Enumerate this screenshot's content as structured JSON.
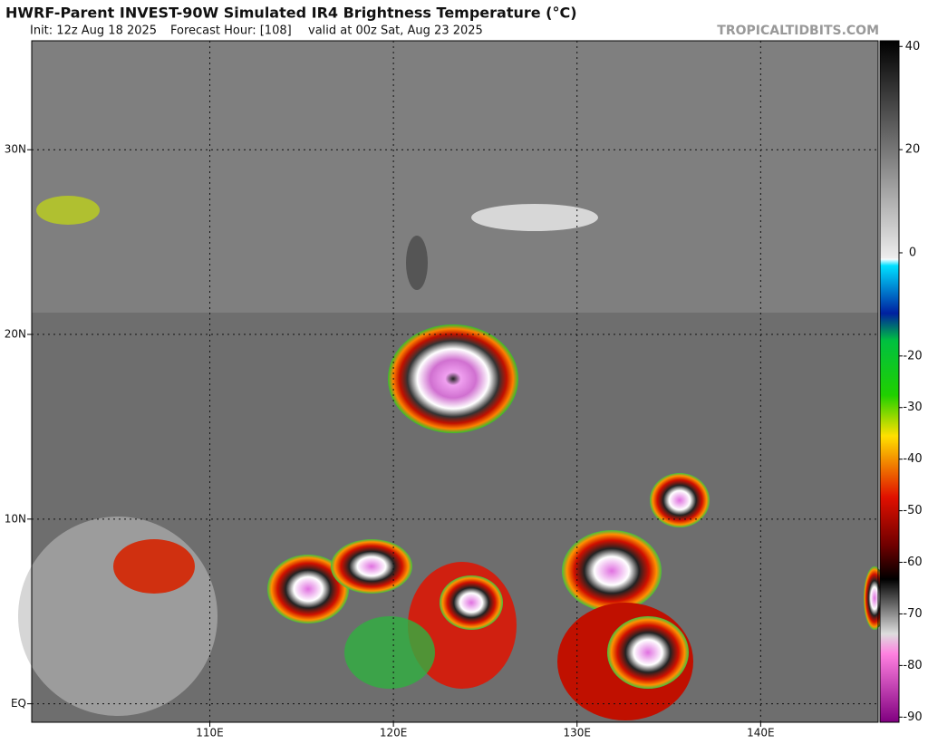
{
  "header": {
    "title": "HWRF-Parent INVEST-90W Simulated IR4 Brightness Temperature (°C)",
    "init": "Init: 12z Aug 18 2025",
    "forecast_hour": "Forecast Hour: [108]",
    "valid": "valid at 00z Sat, Aug 23 2025",
    "watermark": "TROPICALTIDBITS.COM"
  },
  "map": {
    "lonlim": [
      100.3,
      146.4
    ],
    "latlim": [
      35.9,
      -1
    ],
    "lonticks": [
      {
        "value": 110,
        "label": "110E"
      },
      {
        "value": 120,
        "label": "120E"
      },
      {
        "value": 130,
        "label": "130E"
      },
      {
        "value": 140,
        "label": "140E"
      }
    ],
    "latticks": [
      {
        "value": 30,
        "label": "30N"
      },
      {
        "value": 20,
        "label": "20N"
      },
      {
        "value": 10,
        "label": "10N"
      },
      {
        "value": 0,
        "label": "EQ"
      }
    ]
  },
  "colorbar": {
    "lim": [
      41.1,
      -91
    ],
    "ticks": [
      40,
      20,
      0,
      -20,
      -30,
      -40,
      -50,
      -60,
      -70,
      -80,
      -90
    ]
  }
}
